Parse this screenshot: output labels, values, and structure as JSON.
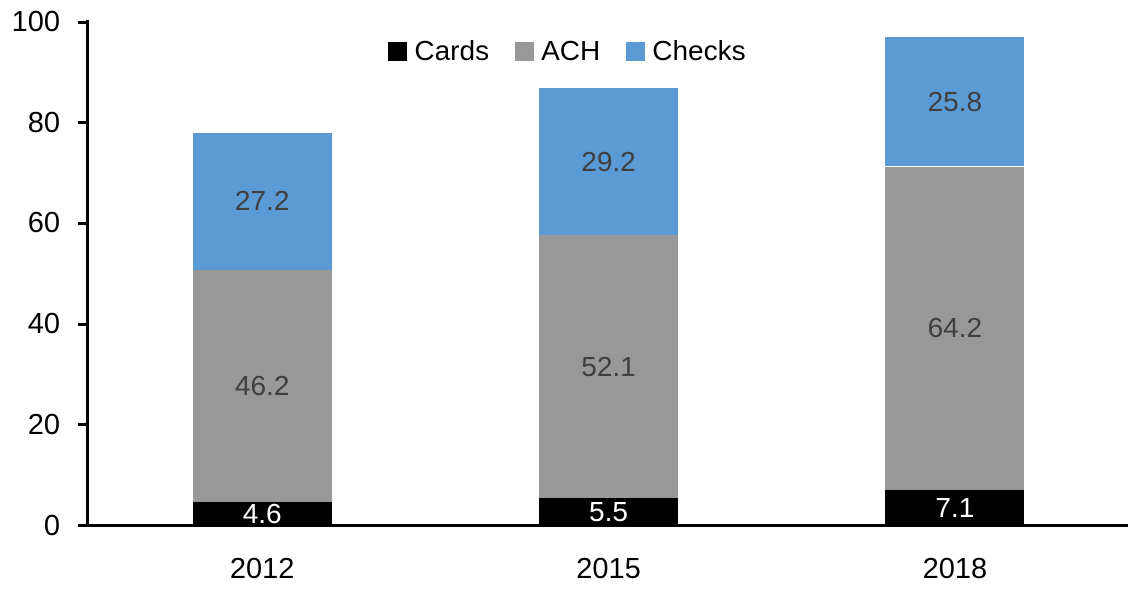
{
  "chart_data": {
    "type": "bar",
    "stacked": true,
    "title": "",
    "xlabel": "",
    "ylabel": "",
    "categories": [
      "2012",
      "2015",
      "2018"
    ],
    "series": [
      {
        "name": "Cards",
        "color": "#000000",
        "label_color": "#ffffff",
        "values": [
          4.6,
          5.5,
          7.1
        ]
      },
      {
        "name": "ACH",
        "color": "#989898",
        "label_color": "#3f3f3f",
        "values": [
          46.2,
          52.1,
          64.2
        ]
      },
      {
        "name": "Checks",
        "color": "#5b9bd5",
        "label_color": "#3f3f3f",
        "values": [
          27.2,
          29.2,
          25.8
        ]
      }
    ],
    "y_axis": {
      "min": 0,
      "max": 100,
      "tick_interval": 20,
      "tick_labels": [
        "0",
        "20",
        "40",
        "60",
        "80",
        "100"
      ]
    },
    "legend": {
      "position": "top-center",
      "entries": [
        "Cards",
        "ACH",
        "Checks"
      ]
    },
    "grid": false,
    "data_labels": true,
    "axis_color": "#000000",
    "background": "#ffffff"
  }
}
